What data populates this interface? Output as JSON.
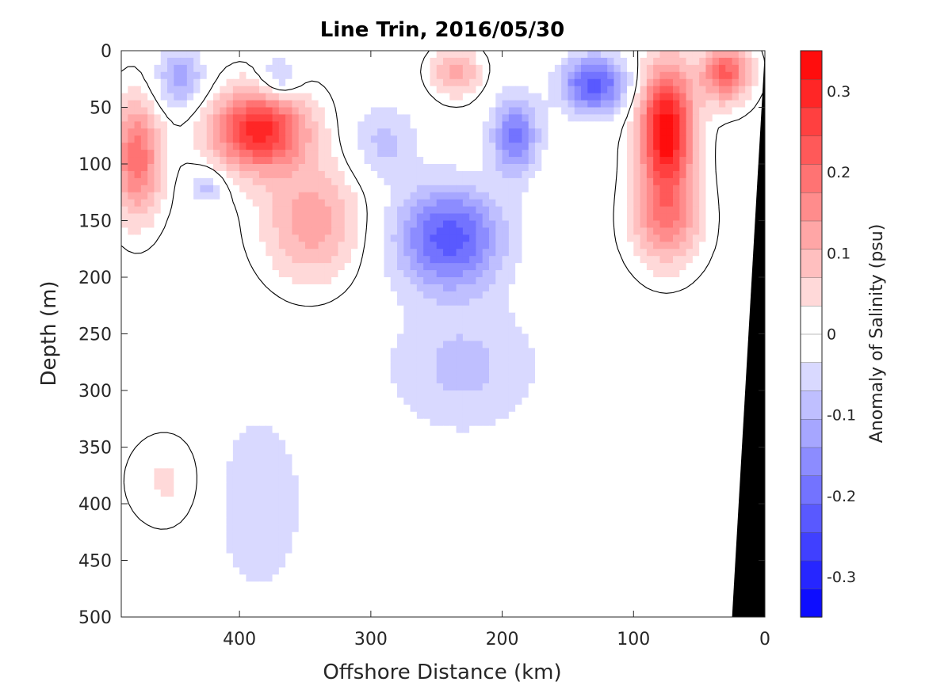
{
  "chart_data": {
    "type": "heatmap",
    "title": "Line Trin, 2016/05/30",
    "xlabel": "Offshore Distance (km)",
    "ylabel": "Depth (m)",
    "x_range": [
      490,
      0
    ],
    "y_range": [
      0,
      500
    ],
    "x_ticks": [
      400,
      300,
      200,
      100,
      0
    ],
    "y_ticks": [
      0,
      50,
      100,
      150,
      200,
      250,
      300,
      350,
      400,
      450,
      500
    ],
    "colorbar": {
      "label": "Anomaly of Salinity (psu)",
      "range": [
        -0.35,
        0.35
      ],
      "ticks": [
        0.3,
        0.2,
        0.1,
        0,
        -0.1,
        -0.2,
        -0.3
      ],
      "tick_labels": [
        "0.3",
        "0.2",
        "0.1",
        "0",
        "-0.1",
        "-0.2",
        "-0.3"
      ],
      "levels": 20,
      "low_color": "#0000ff",
      "zero_color": "#ffffff",
      "high_color": "#ff0000"
    },
    "features": [
      {
        "x": 385,
        "y": 70,
        "amplitude": 0.3,
        "sx": 35,
        "sy": 35
      },
      {
        "x": 345,
        "y": 150,
        "amplitude": 0.13,
        "sx": 35,
        "sy": 50
      },
      {
        "x": 478,
        "y": 95,
        "amplitude": 0.2,
        "sx": 18,
        "sy": 50
      },
      {
        "x": 75,
        "y": 70,
        "amplitude": 0.35,
        "sx": 20,
        "sy": 55
      },
      {
        "x": 75,
        "y": 150,
        "amplitude": 0.15,
        "sx": 25,
        "sy": 40
      },
      {
        "x": 30,
        "y": 20,
        "amplitude": 0.22,
        "sx": 18,
        "sy": 25
      },
      {
        "x": 235,
        "y": 20,
        "amplitude": 0.12,
        "sx": 18,
        "sy": 20
      },
      {
        "x": 455,
        "y": 380,
        "amplitude": 0.04,
        "sx": 30,
        "sy": 40
      },
      {
        "x": 240,
        "y": 165,
        "amplitude": -0.23,
        "sx": 40,
        "sy": 45
      },
      {
        "x": 190,
        "y": 75,
        "amplitude": -0.18,
        "sx": 18,
        "sy": 35
      },
      {
        "x": 130,
        "y": 30,
        "amplitude": -0.23,
        "sx": 25,
        "sy": 25
      },
      {
        "x": 445,
        "y": 25,
        "amplitude": -0.13,
        "sx": 18,
        "sy": 25
      },
      {
        "x": 370,
        "y": 25,
        "amplitude": -0.1,
        "sx": 15,
        "sy": 20
      },
      {
        "x": 230,
        "y": 280,
        "amplitude": -0.08,
        "sx": 60,
        "sy": 60
      },
      {
        "x": 385,
        "y": 400,
        "amplitude": -0.07,
        "sx": 35,
        "sy": 85
      },
      {
        "x": 290,
        "y": 80,
        "amplitude": -0.08,
        "sx": 25,
        "sy": 35
      },
      {
        "x": 425,
        "y": 120,
        "amplitude": -0.09,
        "sx": 12,
        "sy": 15
      }
    ],
    "coastline": [
      [
        0,
        0
      ],
      [
        0,
        500
      ],
      [
        25,
        500
      ]
    ],
    "coastline_color": "#000000"
  }
}
